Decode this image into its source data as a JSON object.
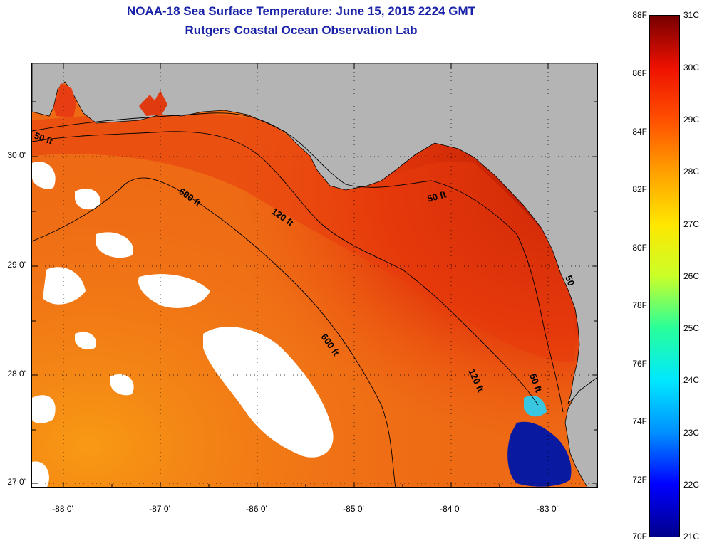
{
  "header": {
    "title": "NOAA-18 Sea Surface Temperature:  June 15, 2015 2224 GMT",
    "subtitle": "Rutgers Coastal Ocean Observation Lab"
  },
  "map": {
    "lat_range": [
      26.97,
      30.89
    ],
    "lon_range": [
      -88.33,
      -82.49
    ],
    "lat_ticks": [
      "30 0'",
      "29 0'",
      "28 0'",
      "27 0'"
    ],
    "lon_ticks": [
      "-88 0'",
      "-87 0'",
      "-86 0'",
      "-85 0'",
      "-84 0'",
      "-83 0'"
    ],
    "gridlines": true,
    "colors": {
      "land": "#b4b4b4",
      "cloud_mask": "#ffffff",
      "coast": "#000000"
    },
    "contour_labels": [
      "50 ft",
      "600 ft",
      "120 ft",
      "50 ft",
      "600 ft",
      "120 ft",
      "50 ft",
      "50"
    ]
  },
  "colorbar": {
    "f_labels": [
      "88F",
      "86F",
      "84F",
      "82F",
      "80F",
      "78F",
      "76F",
      "74F",
      "72F",
      "70F"
    ],
    "c_labels": [
      "31C",
      "30C",
      "29C",
      "28C",
      "27C",
      "26C",
      "25C",
      "24C",
      "23C",
      "22C",
      "21C"
    ],
    "range_f": [
      70,
      88
    ],
    "range_c": [
      21,
      31
    ],
    "colors": [
      "#00008c",
      "#0000ff",
      "#0090ff",
      "#00e8ff",
      "#28ff9a",
      "#caff28",
      "#ffe600",
      "#ffa000",
      "#ff5000",
      "#ee1100",
      "#760000"
    ]
  }
}
